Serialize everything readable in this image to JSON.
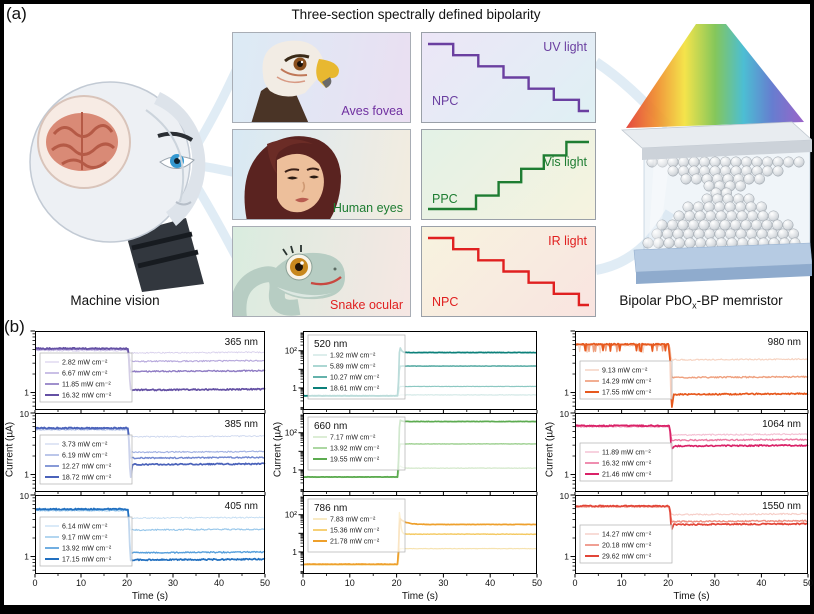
{
  "panel_a": {
    "label": "(a)",
    "title": "Three-section spectrally defined bipolarity",
    "machine_vision_label": "Machine vision",
    "device_label": {
      "pre": "Bipolar PbO",
      "sub": "x",
      "post": "-BP memristor"
    },
    "vision_cards": [
      {
        "name": "Aves fovea",
        "color": "#7030a0"
      },
      {
        "name": "Human eyes",
        "color": "#1e7d32"
      },
      {
        "name": "Snake ocular",
        "color": "#e02020"
      }
    ],
    "step_plots": [
      {
        "light": "UV light",
        "mode": "NPC",
        "color": "#6a3fa0",
        "direction": "down"
      },
      {
        "light": "Vis light",
        "mode": "PPC",
        "color": "#1e7d32",
        "direction": "up"
      },
      {
        "light": "IR light",
        "mode": "NPC",
        "color": "#e02020",
        "direction": "down"
      }
    ]
  },
  "panel_b": {
    "label": "(b)",
    "xlabel": "Time (s)",
    "ylabel": "Current (µA)",
    "x_ticks": [
      0,
      10,
      20,
      30,
      40,
      50
    ]
  },
  "chart_data": [
    {
      "type": "line",
      "title": "365 nm",
      "xlabel": "Time (s)",
      "ylabel": "Current (µA)",
      "xlim": [
        0,
        50
      ],
      "ylog": true,
      "ylim": [
        0.52,
        10
      ],
      "behavior": "NPC",
      "step_time": 20.3,
      "x_ticks": [
        0,
        10,
        20,
        30,
        40,
        50
      ],
      "y_ticks": [
        {
          "v": 10,
          "label": ""
        },
        {
          "v": 1,
          "label": "1"
        }
      ],
      "series": [
        {
          "label": "2.82 mW cm⁻²",
          "color": "#d8d0ec",
          "baseline": 4.8,
          "final": 4.4
        },
        {
          "label": "6.67 mW cm⁻²",
          "color": "#b6a8dc",
          "baseline": 5.0,
          "final": 3.2
        },
        {
          "label": "11.85 mW cm⁻²",
          "color": "#8f7cc4",
          "baseline": 5.1,
          "final": 2.2
        },
        {
          "label": "16.32 mW cm⁻²",
          "color": "#6450a4",
          "baseline": 5.2,
          "final": 1.1
        }
      ]
    },
    {
      "type": "line",
      "title": "385 nm",
      "xlabel": "Time (s)",
      "ylabel": "Current (µA)",
      "xlim": [
        0,
        50
      ],
      "ylog": true,
      "ylim": [
        0.52,
        10
      ],
      "behavior": "NPC",
      "step_time": 20.3,
      "x_ticks": [
        0,
        10,
        20,
        30,
        40,
        50
      ],
      "y_ticks": [
        {
          "v": 10,
          "label": "10"
        },
        {
          "v": 1,
          "label": "1"
        }
      ],
      "series": [
        {
          "label": "3.73 mW cm⁻²",
          "color": "#ccd6ee",
          "baseline": 5.3,
          "final": 4.1
        },
        {
          "label": "6.19 mW cm⁻²",
          "color": "#a2b2e2",
          "baseline": 5.5,
          "final": 2.3
        },
        {
          "label": "12.27 mW cm⁻²",
          "color": "#7288d0",
          "baseline": 5.6,
          "final": 1.85
        },
        {
          "label": "18.72 mW cm⁻²",
          "color": "#4a62ba",
          "baseline": 5.7,
          "final": 1.45,
          "dip": 0.78
        }
      ]
    },
    {
      "type": "line",
      "title": "405 nm",
      "xlabel": "Time (s)",
      "ylabel": "Current (µA)",
      "xlim": [
        0,
        50
      ],
      "ylog": true,
      "ylim": [
        0.52,
        10
      ],
      "behavior": "NPC",
      "step_time": 20.3,
      "x_ticks": [
        0,
        10,
        20,
        30,
        40,
        50
      ],
      "y_ticks": [
        {
          "v": 10,
          "label": "10"
        },
        {
          "v": 1,
          "label": "1"
        }
      ],
      "series": [
        {
          "label": "6.14 mW cm⁻²",
          "color": "#c2dcf2",
          "baseline": 5.5,
          "final": 4.2
        },
        {
          "label": "9.17 mW cm⁻²",
          "color": "#96c6ea",
          "baseline": 5.7,
          "final": 2.7
        },
        {
          "label": "13.92 mW cm⁻²",
          "color": "#58a0dc",
          "baseline": 5.8,
          "final": 1.15
        },
        {
          "label": "17.15 mW cm⁻²",
          "color": "#2270c0",
          "baseline": 5.9,
          "final": 0.88
        }
      ]
    },
    {
      "type": "line",
      "title": "520 nm",
      "xlabel": "Time (s)",
      "ylabel": "Current (µA)",
      "xlim": [
        0,
        50
      ],
      "ylog": true,
      "ylim": [
        0.065,
        1150
      ],
      "behavior": "PPC",
      "step_time": 20.3,
      "x_ticks": [
        0,
        10,
        20,
        30,
        40,
        50
      ],
      "y_ticks": [
        {
          "v": 100,
          "label": "10²"
        },
        {
          "v": 10,
          "label": ""
        },
        {
          "v": 1,
          "label": "1"
        }
      ],
      "series": [
        {
          "label": "1.92 mW cm⁻²",
          "color": "#c6e2df",
          "baseline": 0.35,
          "final": 0.42
        },
        {
          "label": "5.89 mW cm⁻²",
          "color": "#8cc8c2",
          "baseline": 0.36,
          "final": 1.2
        },
        {
          "label": "10.27 mW cm⁻²",
          "color": "#48a49c",
          "baseline": 0.37,
          "final": 15
        },
        {
          "label": "18.61 mW cm⁻²",
          "color": "#0b807a",
          "baseline": 0.38,
          "final": 80,
          "spike": 200,
          "tau": 0.3
        }
      ]
    },
    {
      "type": "line",
      "title": "660 nm",
      "xlabel": "Time (s)",
      "ylabel": "Current (µA)",
      "xlim": [
        0,
        50
      ],
      "ylog": true,
      "ylim": [
        0.065,
        1150
      ],
      "behavior": "PPC",
      "step_time": 20.3,
      "x_ticks": [
        0,
        10,
        20,
        30,
        40,
        50
      ],
      "y_ticks": [
        {
          "v": 100,
          "label": "10²"
        },
        {
          "v": 10,
          "label": ""
        },
        {
          "v": 1,
          "label": "1"
        }
      ],
      "series": [
        {
          "label": "7.17 mW cm⁻²",
          "color": "#cfe6c5",
          "baseline": 0.4,
          "final": 1.25,
          "spike": 1.9,
          "tau": 0.4
        },
        {
          "label": "13.92 mW cm⁻²",
          "color": "#9ed091",
          "baseline": 0.41,
          "final": 25
        },
        {
          "label": "19.55 mW cm⁻²",
          "color": "#5cab50",
          "baseline": 0.42,
          "final": 400,
          "spike": 520,
          "tau": 0.3
        }
      ]
    },
    {
      "type": "line",
      "title": "786 nm",
      "xlabel": "Time (s)",
      "ylabel": "Current (µA)",
      "xlim": [
        0,
        50
      ],
      "ylog": true,
      "ylim": [
        0.065,
        1150
      ],
      "behavior": "PPC",
      "step_time": 20.3,
      "x_ticks": [
        0,
        10,
        20,
        30,
        40,
        50
      ],
      "y_ticks": [
        {
          "v": 100,
          "label": "10²"
        },
        {
          "v": 10,
          "label": ""
        },
        {
          "v": 1,
          "label": "1"
        }
      ],
      "series": [
        {
          "label": "7.83 mW cm⁻²",
          "color": "#f6e2ae",
          "baseline": 0.2,
          "final": 1.5
        },
        {
          "label": "15.36 mW cm⁻²",
          "color": "#f4c85e",
          "baseline": 0.21,
          "final": 9,
          "spike": 380,
          "tau": 0.22
        },
        {
          "label": "21.78 mW cm⁻²",
          "color": "#eea02c",
          "baseline": 0.22,
          "final": 30,
          "spike": 65,
          "tau": 1.3
        }
      ]
    },
    {
      "type": "line",
      "title": "980 nm",
      "xlabel": "Time (s)",
      "ylabel": "Current (µA)",
      "xlim": [
        0,
        50
      ],
      "ylog": true,
      "ylim": [
        0.52,
        10
      ],
      "behavior": "NPC",
      "step_time": 20.3,
      "noisy": true,
      "x_ticks": [
        0,
        10,
        20,
        30,
        40,
        50
      ],
      "y_ticks": [
        {
          "v": 10,
          "label": ""
        },
        {
          "v": 1,
          "label": "1"
        }
      ],
      "series": [
        {
          "label": "9.13 mW cm⁻²",
          "color": "#f6d2c0",
          "baseline": 5.8,
          "final": 3.4
        },
        {
          "label": "14.29 mW cm⁻²",
          "color": "#efa07e",
          "baseline": 6.0,
          "final": 1.75
        },
        {
          "label": "17.55 mW cm⁻²",
          "color": "#e7591e",
          "baseline": 6.1,
          "final": 0.93,
          "dip": 0.5
        }
      ]
    },
    {
      "type": "line",
      "title": "1064 nm",
      "xlabel": "Time (s)",
      "ylabel": "Current (µA)",
      "xlim": [
        0,
        50
      ],
      "ylog": true,
      "ylim": [
        0.52,
        10
      ],
      "behavior": "NPC",
      "step_time": 20.3,
      "x_ticks": [
        0,
        10,
        20,
        30,
        40,
        50
      ],
      "y_ticks": [
        {
          "v": 10,
          "label": "10"
        },
        {
          "v": 1,
          "label": "1"
        }
      ],
      "series": [
        {
          "label": "11.89 mW cm⁻²",
          "color": "#f4c0d3",
          "baseline": 6.0,
          "final": 4.4
        },
        {
          "label": "16.32 mW cm⁻²",
          "color": "#ec7aa2",
          "baseline": 6.1,
          "final": 3.6
        },
        {
          "label": "21.46 mW cm⁻²",
          "color": "#da2268",
          "baseline": 6.2,
          "final": 2.9,
          "dip": 2.5
        }
      ]
    },
    {
      "type": "line",
      "title": "1550 nm",
      "xlabel": "Time (s)",
      "ylabel": "Current (µA)",
      "xlim": [
        0,
        50
      ],
      "ylog": true,
      "ylim": [
        0.52,
        10
      ],
      "behavior": "NPC",
      "step_time": 20.3,
      "x_ticks": [
        0,
        10,
        20,
        30,
        40,
        50
      ],
      "y_ticks": [
        {
          "v": 10,
          "label": "10"
        },
        {
          "v": 1,
          "label": "1"
        }
      ],
      "series": [
        {
          "label": "14.27 mW cm⁻²",
          "color": "#f6cec8",
          "baseline": 6.4,
          "final": 4.8
        },
        {
          "label": "20.18 mW cm⁻²",
          "color": "#ee8e80",
          "baseline": 6.5,
          "final": 3.7
        },
        {
          "label": "29.62 mW cm⁻²",
          "color": "#e24638",
          "baseline": 6.6,
          "final": 3.3,
          "dip": 2.6
        }
      ]
    }
  ]
}
